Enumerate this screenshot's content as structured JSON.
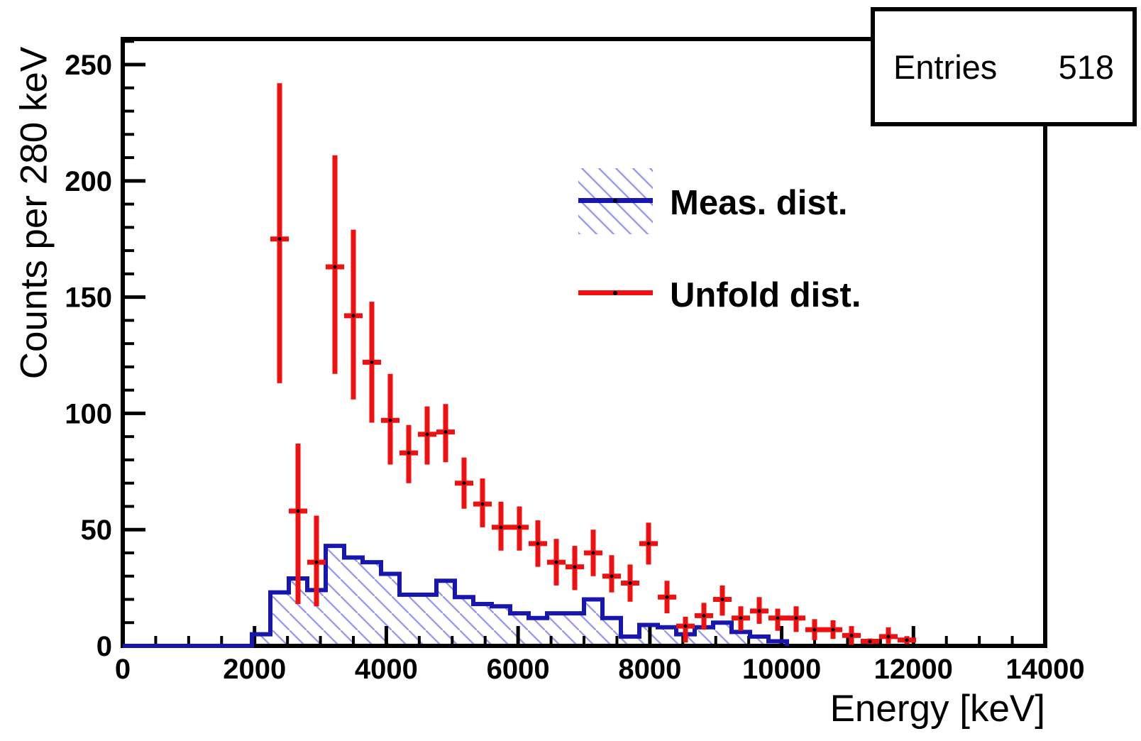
{
  "stats_box": {
    "label": "Entries",
    "value": "518"
  },
  "colors": {
    "measured_line": "#1717ad",
    "measured_hatch": "#9c9cec",
    "unfolded": "#f11010",
    "marker_dot": "#000000",
    "frame": "#000000",
    "background": "#ffffff"
  },
  "chart_data": {
    "type": "bar",
    "subtype": "step_histogram_with_errorbar_overlay",
    "title": "",
    "xlabel": "Energy [keV]",
    "ylabel": "Counts per 280 keV",
    "xlim": [
      0,
      14000
    ],
    "ylim": [
      0,
      261
    ],
    "x_major_tick_step": 2000,
    "x_minor_tick_step": 500,
    "y_major_tick_step": 50,
    "y_minor_tick_step": 10,
    "x_tick_labels": [
      "0",
      "2000",
      "4000",
      "6000",
      "8000",
      "10000",
      "12000",
      "14000"
    ],
    "y_tick_labels": [
      "0",
      "50",
      "100",
      "150",
      "200",
      "250"
    ],
    "grid": false,
    "legend_position": "upper-middle-right",
    "bin_width_kev": 280,
    "stats": {
      "entries": 518
    },
    "series": [
      {
        "name": "Meas. dist.",
        "style": "step_histogram_hatched",
        "first_bin_left_edge": 1960,
        "bin_width": 280,
        "counts": [
          5,
          23,
          29,
          24,
          43,
          38,
          36,
          31,
          22,
          22,
          28,
          21,
          18,
          17,
          14,
          12,
          14,
          14,
          20,
          12,
          4,
          9,
          8,
          5,
          8,
          10,
          6,
          4,
          2
        ]
      },
      {
        "name": "Unfold dist.",
        "style": "errorbar_points",
        "points_format": [
          "bin_center_keV",
          "value",
          "err_low_end",
          "err_high_end"
        ],
        "points": [
          [
            2380,
            175,
            113,
            242
          ],
          [
            2660,
            58,
            18,
            87
          ],
          [
            2940,
            36,
            17,
            56
          ],
          [
            3220,
            163,
            117,
            211
          ],
          [
            3500,
            142,
            106,
            179
          ],
          [
            3780,
            122,
            96,
            148
          ],
          [
            4060,
            97,
            78,
            117
          ],
          [
            4340,
            83,
            70,
            95
          ],
          [
            4620,
            91,
            78,
            103
          ],
          [
            4900,
            92,
            79,
            104
          ],
          [
            5180,
            70,
            59,
            81
          ],
          [
            5460,
            61,
            51,
            72
          ],
          [
            5740,
            51,
            41,
            62
          ],
          [
            6020,
            51,
            41,
            60
          ],
          [
            6300,
            44,
            34,
            54
          ],
          [
            6580,
            36,
            26,
            46
          ],
          [
            6860,
            34,
            24,
            43
          ],
          [
            7140,
            40,
            30,
            50
          ],
          [
            7420,
            30,
            23,
            39
          ],
          [
            7700,
            27,
            19,
            35
          ],
          [
            7980,
            44,
            35,
            53
          ],
          [
            8260,
            21,
            14,
            28
          ],
          [
            8540,
            8.5,
            1.5,
            12.5
          ],
          [
            8820,
            13,
            7,
            18.5
          ],
          [
            9100,
            20,
            13,
            26
          ],
          [
            9380,
            12,
            6.5,
            17
          ],
          [
            9660,
            15,
            9.5,
            21
          ],
          [
            9940,
            12,
            6.5,
            16
          ],
          [
            10220,
            12,
            6,
            17
          ],
          [
            10500,
            7,
            2.5,
            11.5
          ],
          [
            10780,
            7,
            3,
            11
          ],
          [
            11060,
            4.5,
            0.5,
            8.5
          ],
          [
            11340,
            2,
            0.8,
            3.2
          ],
          [
            11620,
            4,
            1,
            8
          ],
          [
            11900,
            2.5,
            0.8,
            4.2
          ]
        ]
      }
    ]
  }
}
